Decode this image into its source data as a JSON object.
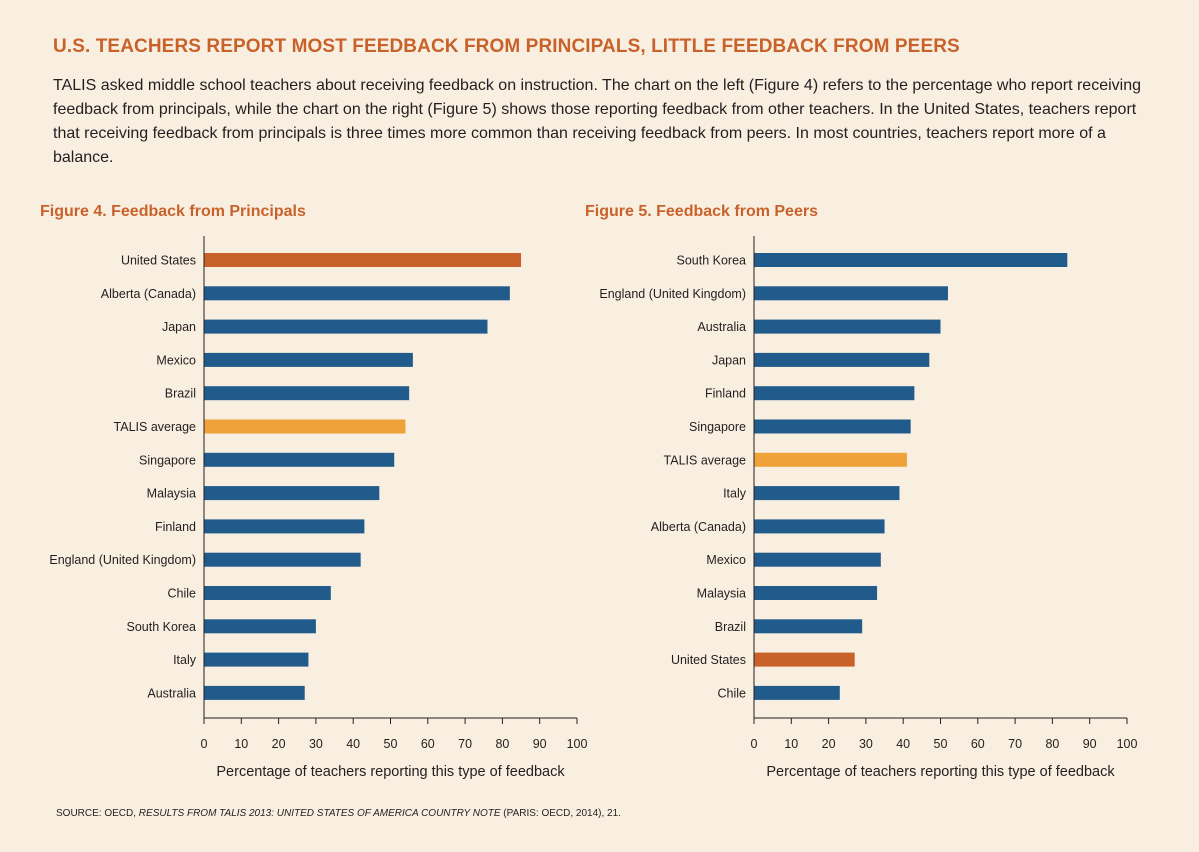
{
  "title": "U.S. TEACHERS REPORT MOST FEEDBACK FROM PRINCIPALS, LITTLE FEEDBACK FROM PEERS",
  "intro": "TALIS asked middle school teachers about receiving feedback on instruction. The chart on the left (Figure 4) refers to the percentage who report receiving feedback from principals, while the chart on the right (Figure 5) shows those reporting feedback from other teachers. In the United States, teachers report that receiving feedback from principals is three times more common than receiving feedback from peers. In most countries, teachers report more of a balance.",
  "source": {
    "prefix": "SOURCE: OECD, ",
    "italic": "RESULTS FROM TALIS 2013: UNITED STATES OF AMERICA COUNTRY NOTE",
    "suffix": " (PARIS: OECD, 2014), 21."
  },
  "colors": {
    "default": "#215b8c",
    "united_states": "#c8622a",
    "talis_average": "#f0a23a"
  },
  "chart_data": [
    {
      "type": "bar",
      "orientation": "horizontal",
      "title": "Figure 4. Feedback from Principals",
      "xlabel": "Percentage of teachers reporting this type of feedback",
      "ylabel": "",
      "xlim": [
        0,
        100
      ],
      "xticks": [
        0,
        10,
        20,
        30,
        40,
        50,
        60,
        70,
        80,
        90,
        100
      ],
      "grid": false,
      "categories": [
        "United States",
        "Alberta (Canada)",
        "Japan",
        "Mexico",
        "Brazil",
        "TALIS average",
        "Singapore",
        "Malaysia",
        "Finland",
        "England (United Kingdom)",
        "Chile",
        "South Korea",
        "Italy",
        "Australia"
      ],
      "values": [
        85,
        82,
        76,
        56,
        55,
        54,
        51,
        47,
        43,
        42,
        34,
        30,
        28,
        27
      ],
      "highlights": {
        "United States": "united_states",
        "TALIS average": "talis_average"
      }
    },
    {
      "type": "bar",
      "orientation": "horizontal",
      "title": "Figure 5. Feedback from Peers",
      "xlabel": "Percentage of teachers reporting this type of feedback",
      "ylabel": "",
      "xlim": [
        0,
        100
      ],
      "xticks": [
        0,
        10,
        20,
        30,
        40,
        50,
        60,
        70,
        80,
        90,
        100
      ],
      "grid": false,
      "categories": [
        "South Korea",
        "England (United Kingdom)",
        "Australia",
        "Japan",
        "Finland",
        "Singapore",
        "TALIS average",
        "Italy",
        "Alberta (Canada)",
        "Mexico",
        "Malaysia",
        "Brazil",
        "United States",
        "Chile"
      ],
      "values": [
        84,
        52,
        50,
        47,
        43,
        42,
        41,
        39,
        35,
        34,
        33,
        29,
        27,
        23
      ],
      "highlights": {
        "United States": "united_states",
        "TALIS average": "talis_average"
      }
    }
  ]
}
